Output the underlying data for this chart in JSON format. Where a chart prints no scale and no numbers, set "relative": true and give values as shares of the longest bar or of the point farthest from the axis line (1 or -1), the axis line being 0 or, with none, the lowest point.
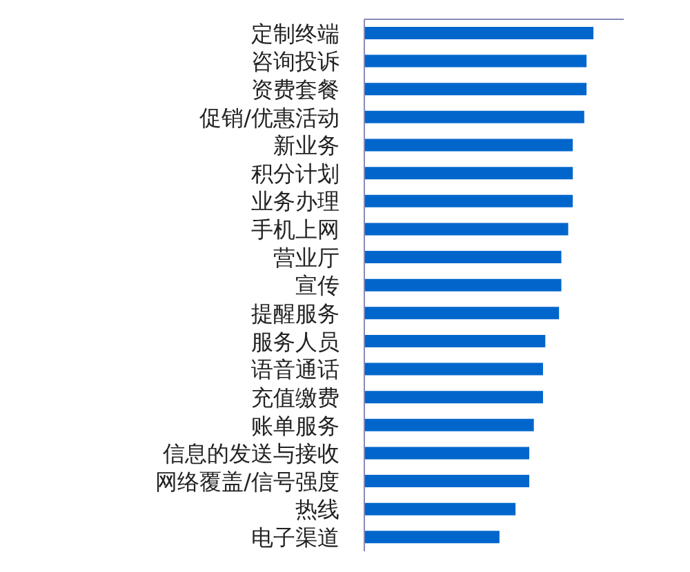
{
  "chart_data": {
    "type": "bar",
    "orientation": "horizontal",
    "relative": true,
    "color": "#0066cc",
    "categories": [
      "定制终端",
      "咨询投诉",
      "资费套餐",
      "促销/优惠活动",
      "新业务",
      "积分计划",
      "业务办理",
      "手机上网",
      "营业厅",
      "宣传",
      "提醒服务",
      "服务人员",
      "语音通话",
      "充值缴费",
      "账单服务",
      "信息的发送与接收",
      "网络覆盖/信号强度",
      "热线",
      "电子渠道"
    ],
    "values": [
      1,
      0.97,
      0.97,
      0.96,
      0.91,
      0.91,
      0.91,
      0.89,
      0.86,
      0.86,
      0.85,
      0.79,
      0.78,
      0.78,
      0.74,
      0.72,
      0.72,
      0.66,
      0.59
    ]
  }
}
